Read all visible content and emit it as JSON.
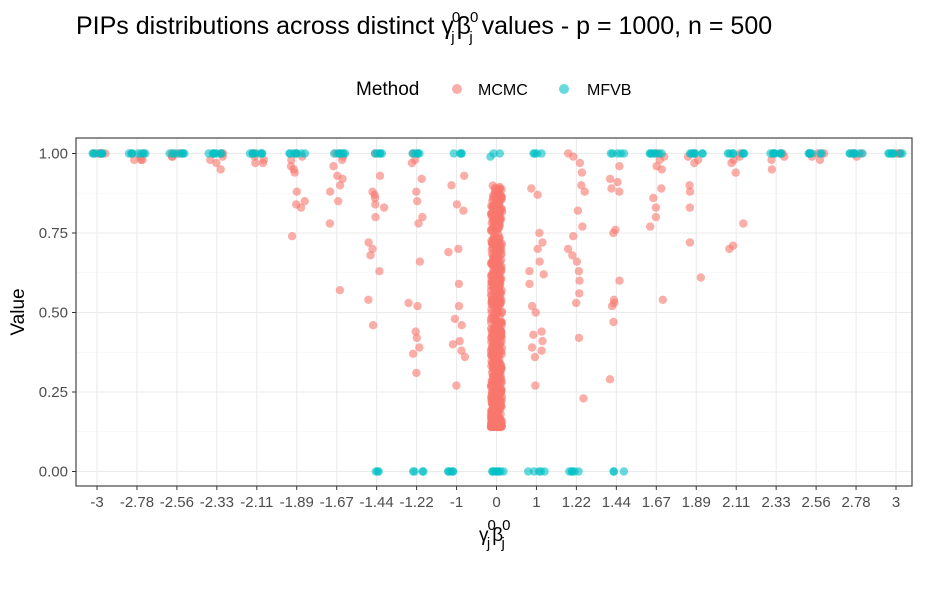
{
  "chart_data": {
    "type": "scatter",
    "title": {
      "prefix": "PIPs distributions across distinct ",
      "sym1": "γ",
      "sup1": "0",
      "sub1": "j",
      "sym2": "β",
      "sup2": "0",
      "sub2": "j",
      "suffix": " values - p = 1000, n = 500"
    },
    "xlabel": {
      "sym1": "γ",
      "sup1": "0",
      "sub1": "j",
      "sym2": "β",
      "sup2": "0",
      "sub2": "j"
    },
    "ylabel": "Value",
    "ylim": [
      0,
      1
    ],
    "y_ticks": [
      "0.00",
      "0.25",
      "0.50",
      "0.75",
      "1.00"
    ],
    "y_tick_values": [
      0,
      0.25,
      0.5,
      0.75,
      1.0
    ],
    "x_categories": [
      "-3",
      "-2.78",
      "-2.56",
      "-2.33",
      "-2.11",
      "-1.89",
      "-1.67",
      "-1.44",
      "-1.22",
      "-1",
      "0",
      "1",
      "1.22",
      "1.44",
      "1.67",
      "1.89",
      "2.11",
      "2.33",
      "2.56",
      "2.78",
      "3"
    ],
    "legend": {
      "title": "Method",
      "position": "top"
    },
    "grid": true,
    "series": [
      {
        "name": "MCMC",
        "color": "#F8766D",
        "points": {
          "-3": [
            1.0,
            1.0,
            1.0,
            1.0,
            1.0,
            1.0
          ],
          "-2.78": [
            1.0,
            1.0,
            0.99,
            0.98,
            0.98,
            0.98
          ],
          "-2.56": [
            1.0,
            1.0,
            1.0,
            0.99,
            0.99
          ],
          "-2.33": [
            1.0,
            1.0,
            0.99,
            0.98,
            0.97,
            0.95
          ],
          "-2.11": [
            1.0,
            1.0,
            0.99,
            0.98,
            0.97,
            0.97
          ],
          "-1.89": [
            1.0,
            0.99,
            0.98,
            0.96,
            0.95,
            0.94,
            0.88,
            0.85,
            0.84,
            0.83,
            0.74
          ],
          "-1.67": [
            1.0,
            0.99,
            0.98,
            0.96,
            0.93,
            0.92,
            0.9,
            0.88,
            0.85,
            0.78,
            0.57
          ],
          "-1.44": [
            1.0,
            0.93,
            0.88,
            0.87,
            0.86,
            0.84,
            0.83,
            0.8,
            0.72,
            0.7,
            0.68,
            0.63,
            0.54,
            0.46
          ],
          "-1.22": [
            1.0,
            0.98,
            0.97,
            0.92,
            0.88,
            0.85,
            0.8,
            0.78,
            0.66,
            0.53,
            0.52,
            0.44,
            0.42,
            0.39,
            0.37,
            0.31
          ],
          "-1": [
            0.93,
            0.9,
            0.84,
            0.82,
            0.7,
            0.69,
            0.59,
            0.52,
            0.48,
            0.46,
            0.41,
            0.4,
            0.38,
            0.36,
            0.27
          ],
          "1": [
            0.89,
            0.87,
            0.75,
            0.72,
            0.7,
            0.66,
            0.63,
            0.62,
            0.59,
            0.52,
            0.5,
            0.44,
            0.43,
            0.41,
            0.39,
            0.38,
            0.36,
            0.27
          ],
          "1.22": [
            1.0,
            0.99,
            0.97,
            0.94,
            0.9,
            0.88,
            0.82,
            0.77,
            0.74,
            0.7,
            0.68,
            0.66,
            0.63,
            0.6,
            0.56,
            0.53,
            0.42,
            0.23
          ],
          "1.44": [
            0.96,
            0.92,
            0.91,
            0.89,
            0.88,
            0.76,
            0.75,
            0.6,
            0.54,
            0.53,
            0.52,
            0.47,
            0.29
          ],
          "1.67": [
            1.0,
            0.99,
            0.98,
            0.96,
            0.95,
            0.89,
            0.86,
            0.83,
            0.8,
            0.77,
            0.54
          ],
          "1.89": [
            1.0,
            0.99,
            0.98,
            0.97,
            0.9,
            0.88,
            0.83,
            0.72,
            0.61
          ],
          "2.11": [
            1.0,
            0.99,
            0.98,
            0.97,
            0.94,
            0.78,
            0.71,
            0.7
          ],
          "2.33": [
            1.0,
            1.0,
            0.99,
            0.98,
            0.95
          ],
          "2.56": [
            1.0,
            1.0,
            0.99,
            0.98
          ],
          "2.78": [
            1.0,
            1.0,
            1.0,
            0.99
          ],
          "3": [
            1.0,
            1.0,
            1.0,
            1.0
          ]
        }
      },
      {
        "name": "MFVB",
        "color": "#00BFC4",
        "points": {
          "-3": [
            1.0,
            1.0,
            1.0,
            1.0,
            1.0,
            1.0,
            1.0
          ],
          "-2.78": [
            1.0,
            1.0,
            1.0,
            1.0,
            1.0,
            1.0,
            1.0
          ],
          "-2.56": [
            1.0,
            1.0,
            1.0,
            1.0,
            1.0,
            1.0,
            1.0
          ],
          "-2.33": [
            1.0,
            1.0,
            1.0,
            1.0,
            1.0,
            1.0,
            1.0
          ],
          "-2.11": [
            1.0,
            1.0,
            1.0,
            1.0,
            1.0,
            1.0,
            1.0
          ],
          "-1.89": [
            1.0,
            1.0,
            1.0,
            1.0,
            1.0,
            1.0,
            1.0
          ],
          "-1.67": [
            1.0,
            1.0,
            1.0,
            1.0,
            1.0,
            1.0,
            1.0
          ],
          "-1.44": [
            1.0,
            1.0,
            1.0,
            1.0,
            1.0,
            0.0,
            0.0,
            0.0
          ],
          "-1.22": [
            1.0,
            1.0,
            1.0,
            1.0,
            1.0,
            0.0,
            0.0,
            0.0,
            0.0
          ],
          "-1": [
            1.0,
            1.0,
            1.0,
            1.0,
            0.0,
            0.0,
            0.0,
            0.0,
            0.0
          ],
          "0": [
            1.0,
            1.0,
            0.99,
            0.0,
            0.0,
            0.0,
            0.0,
            0.0,
            0.0,
            0.0,
            0.0
          ],
          "1": [
            1.0,
            1.0,
            1.0,
            1.0,
            0.0,
            0.0,
            0.0,
            0.0,
            0.0
          ],
          "1.22": [
            0.0,
            0.0,
            0.0,
            0.0,
            0.0
          ],
          "1.44": [
            1.0,
            1.0,
            1.0,
            1.0,
            1.0,
            0.0,
            0.0,
            0.0
          ],
          "1.67": [
            1.0,
            1.0,
            1.0,
            1.0,
            1.0,
            1.0,
            1.0
          ],
          "1.89": [
            1.0,
            1.0,
            1.0,
            1.0,
            1.0,
            1.0,
            1.0
          ],
          "2.11": [
            1.0,
            1.0,
            1.0,
            1.0,
            1.0,
            1.0,
            1.0
          ],
          "2.33": [
            1.0,
            1.0,
            1.0,
            1.0,
            1.0,
            1.0,
            1.0
          ],
          "2.56": [
            1.0,
            1.0,
            1.0,
            1.0,
            1.0,
            1.0,
            1.0
          ],
          "2.78": [
            1.0,
            1.0,
            1.0,
            1.0,
            1.0,
            1.0,
            1.0
          ],
          "3": [
            1.0,
            1.0,
            1.0,
            1.0,
            1.0,
            1.0,
            1.0
          ]
        }
      }
    ],
    "null_effect_mcmc": {
      "category": "0",
      "count": 600,
      "range": [
        0.14,
        0.9
      ]
    }
  }
}
